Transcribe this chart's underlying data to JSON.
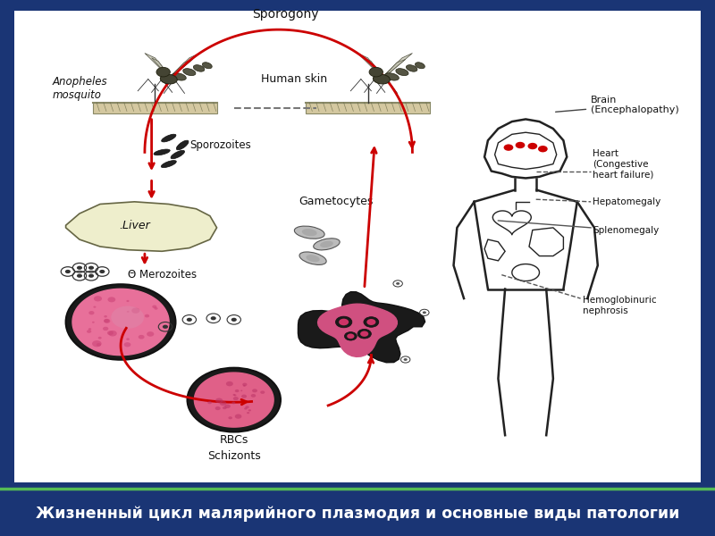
{
  "title": "Жизненный цикл малярийного плазмодия и основные виды патологии",
  "title_color": "#ffffff",
  "title_bg_color": "#1a3575",
  "main_bg_color": "#ffffff",
  "border_bg_color": "#1a3575",
  "arrow_color": "#cc0000",
  "text_color": "#111111",
  "sporogony_label": "Sporogony",
  "mosquito_label": "Anopheles\nmosquito",
  "skin_label": "Human skin",
  "sporozoites_label": "Sporozoites",
  "liver_label": "Liver",
  "merozoites_label": "Θ Merozoites",
  "rbcs_label": "RBCs",
  "schizonts_label": "Schizonts",
  "gametocytes_label": "Gametocytes",
  "brain_label": "Brain\n(Encephalopathy)",
  "heart_label": "Heart\n(Congestive\nheart failure)",
  "hepato_label": "Hepatomegaly",
  "spleno_label": "Splenomegaly",
  "hemo_label": "Hemoglobinuric\nnephrosis"
}
